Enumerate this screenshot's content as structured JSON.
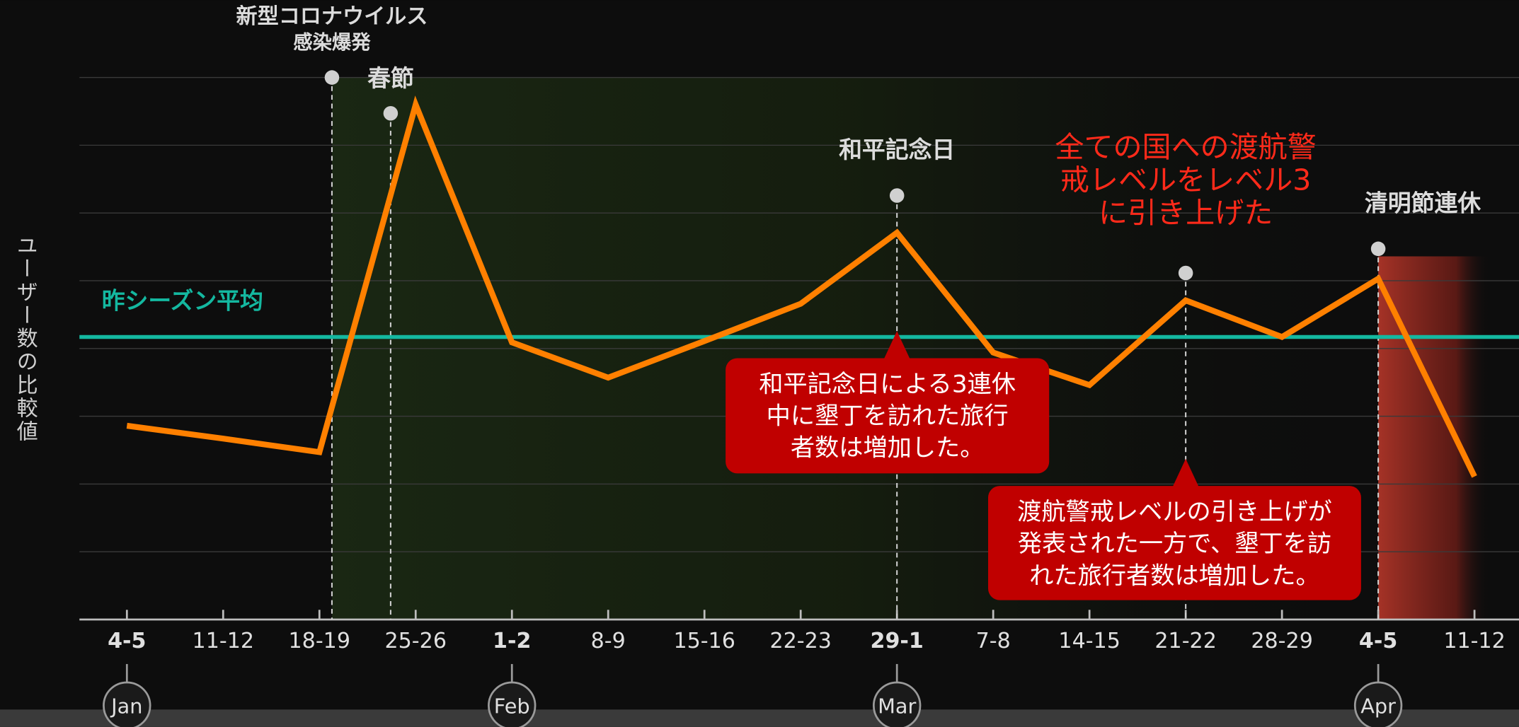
{
  "chart_data": {
    "type": "line",
    "y_axis_label": "ユーザー数の比較値",
    "categories": [
      "4-5",
      "11-12",
      "18-19",
      "25-26",
      "1-2",
      "8-9",
      "15-16",
      "22-23",
      "29-1",
      "7-8",
      "14-15",
      "21-22",
      "28-29",
      "4-5",
      "11-12"
    ],
    "months": [
      {
        "label": "Jan",
        "index": 0
      },
      {
        "label": "Feb",
        "index": 4
      },
      {
        "label": "Mar",
        "index": 8
      },
      {
        "label": "Apr",
        "index": 13
      }
    ],
    "series": [
      {
        "color": "#ff8000",
        "values": [
          2.86,
          2.67,
          2.47,
          7.6,
          4.09,
          3.57,
          4.11,
          4.66,
          5.71,
          3.94,
          3.46,
          4.71,
          4.17,
          5.03,
          2.11
        ]
      }
    ],
    "ylim": [
      0,
      8
    ],
    "yticks": [
      0,
      1,
      2,
      3,
      4,
      5,
      6,
      7,
      8
    ],
    "grid": true,
    "average": {
      "label": "昨シーズン平均",
      "value": 4.17,
      "color": "#14b8a0"
    },
    "events": [
      {
        "lines": [
          "新型コロナウイルス",
          "感染爆発"
        ],
        "index": 2.13
      },
      {
        "lines": [
          "春節"
        ],
        "index": 2.74
      },
      {
        "lines": [
          "和平記念日"
        ],
        "index": 8
      },
      {
        "lines": [
          "全ての国への渡航警",
          "戒レベルをレベル3",
          "に引き上げた"
        ],
        "index": 11,
        "color": "#ff2a1a"
      },
      {
        "lines": [
          "清明節連休"
        ],
        "index": 13
      }
    ],
    "callouts": [
      {
        "lines": [
          "和平記念日による3連休",
          "中に墾丁を訪れた旅行",
          "者数は増加した。"
        ],
        "index": 8
      },
      {
        "lines": [
          "渡航警戒レベルの引き上げが",
          "発表された一方で、墾丁を訪",
          "れた旅行者数は増加した。"
        ],
        "index": 11
      }
    ]
  }
}
